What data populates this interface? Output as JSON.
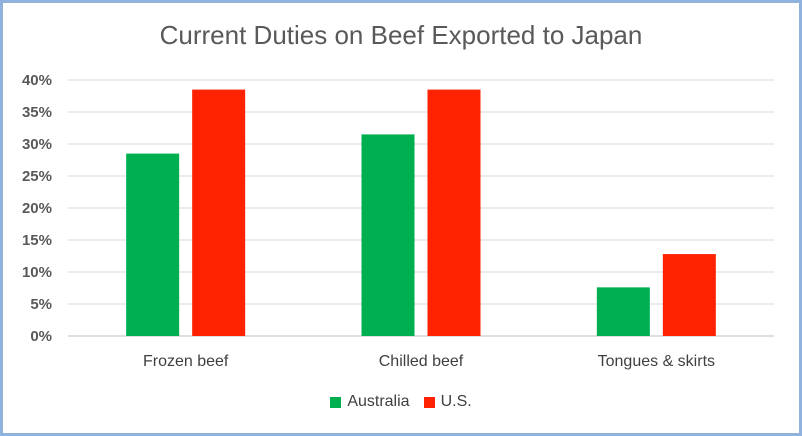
{
  "chart_data": {
    "type": "bar",
    "title": "Current Duties on Beef Exported to Japan",
    "categories": [
      "Frozen beef",
      "Chilled beef",
      "Tongues & skirts"
    ],
    "series": [
      {
        "name": "Australia",
        "color": "#00b050",
        "values": [
          28.5,
          31.5,
          7.6
        ]
      },
      {
        "name": "U.S.",
        "color": "#ff2200",
        "values": [
          38.5,
          38.5,
          12.8
        ]
      }
    ],
    "ylim": [
      0,
      40
    ],
    "yticks": [
      "0%",
      "5%",
      "10%",
      "15%",
      "20%",
      "25%",
      "30%",
      "35%",
      "40%"
    ],
    "grid": true,
    "legend_position": "bottom"
  }
}
